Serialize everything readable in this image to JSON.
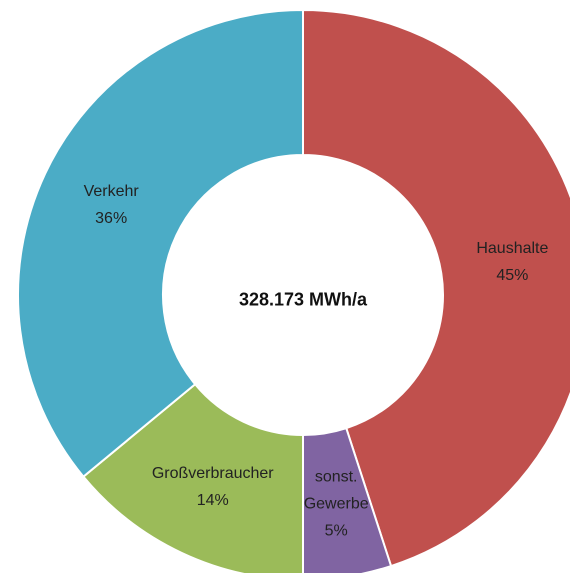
{
  "chart_data": {
    "type": "donut",
    "center_label": "328.173 MWh/a",
    "categories": [
      "Haushalte",
      "sonst. Gewerbe",
      "Großverbraucher",
      "Verkehr"
    ],
    "values": [
      45,
      5,
      14,
      36
    ],
    "value_labels": [
      "45%",
      "5%",
      "14%",
      "36%"
    ],
    "colors": [
      "#c0504d",
      "#8064a2",
      "#9bbb59",
      "#4bacc6"
    ]
  }
}
